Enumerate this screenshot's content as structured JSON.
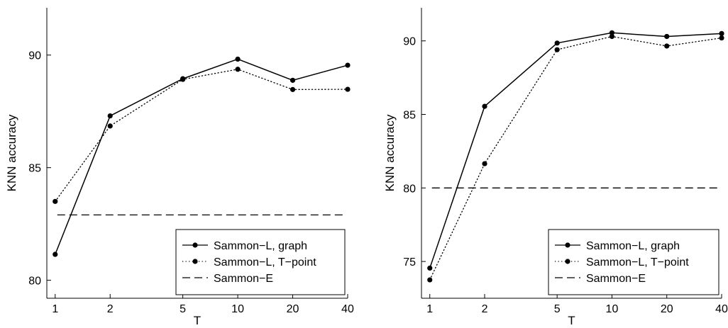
{
  "chart_data": [
    {
      "type": "line",
      "xlabel": "T",
      "ylabel": "KNN accuracy",
      "x_scale": "log",
      "x": [
        1,
        2,
        5,
        10,
        20,
        40
      ],
      "xticks": [
        1,
        2,
        5,
        10,
        20,
        40
      ],
      "xlim": [
        0.9,
        40
      ],
      "ylim": [
        79.2,
        92.1
      ],
      "yticks": [
        80,
        85,
        90
      ],
      "legend_position": "bottom-right",
      "grid": false,
      "series": [
        {
          "name": "Sammon−L, graph",
          "style": "solid-line-dot-markers",
          "values": [
            81.15,
            87.3,
            88.95,
            89.82,
            88.88,
            89.55
          ]
        },
        {
          "name": "Sammon−L, T−point",
          "style": "dotted-line-dot-markers",
          "values": [
            83.5,
            86.85,
            88.92,
            89.37,
            88.47,
            88.48
          ]
        },
        {
          "name": "Sammon−E",
          "style": "dashed-line",
          "values": [
            82.9,
            82.9,
            82.9,
            82.9,
            82.9,
            82.9
          ]
        }
      ]
    },
    {
      "type": "line",
      "xlabel": "T",
      "ylabel": "KNN accuracy",
      "x_scale": "log",
      "x": [
        1,
        2,
        5,
        10,
        20,
        40
      ],
      "xticks": [
        1,
        2,
        5,
        10,
        20,
        40
      ],
      "xlim": [
        0.9,
        40
      ],
      "ylim": [
        72.5,
        92.25
      ],
      "yticks": [
        75,
        80,
        85,
        90
      ],
      "legend_position": "bottom-right",
      "grid": false,
      "series": [
        {
          "name": "Sammon−L, graph",
          "style": "solid-line-dot-markers",
          "values": [
            74.55,
            85.55,
            89.85,
            90.55,
            90.3,
            90.5
          ]
        },
        {
          "name": "Sammon−L, T−point",
          "style": "dotted-line-dot-markers",
          "values": [
            73.75,
            81.65,
            89.4,
            90.3,
            89.65,
            90.2
          ]
        },
        {
          "name": "Sammon−E",
          "style": "dashed-line",
          "values": [
            80.0,
            80.0,
            80.0,
            80.0,
            80.0,
            80.0
          ]
        }
      ]
    }
  ]
}
